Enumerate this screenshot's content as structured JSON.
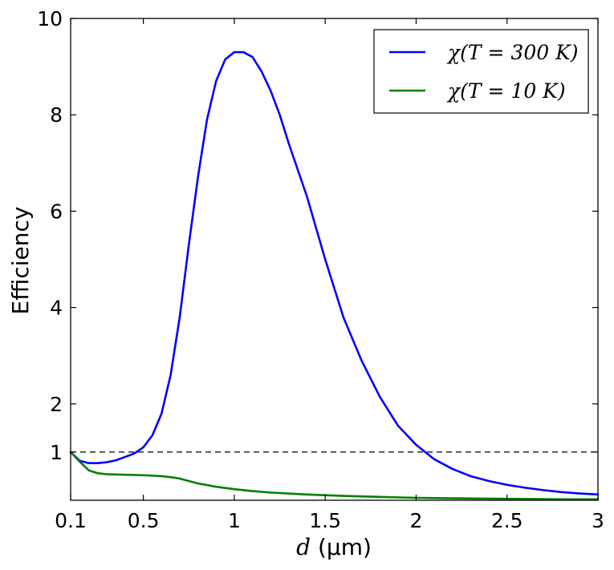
{
  "chart_data": {
    "type": "line",
    "title": "",
    "xlabel": "d (μm)",
    "xlabel_var": "d",
    "xlabel_unit": "(μm)",
    "ylabel": "Efficiency",
    "xlim": [
      0.1,
      3.0
    ],
    "ylim": [
      0,
      10
    ],
    "x_ticks": [
      0.1,
      0.5,
      1.0,
      1.5,
      2.0,
      2.5,
      3.0
    ],
    "x_tick_labels": [
      "0.1",
      "0.5",
      "1",
      "1.5",
      "2",
      "2.5",
      "3"
    ],
    "y_ticks": [
      1,
      2,
      4,
      6,
      8,
      10
    ],
    "y_tick_labels": [
      "1",
      "2",
      "4",
      "6",
      "8",
      "10"
    ],
    "grid": false,
    "legend_position": "top-right",
    "reference_line": {
      "y": 1,
      "style": "dashed",
      "color": "#000000"
    },
    "series": [
      {
        "name": "χ(T = 300 K)",
        "color": "#0000ff",
        "x": [
          0.1,
          0.15,
          0.2,
          0.25,
          0.3,
          0.35,
          0.4,
          0.45,
          0.5,
          0.55,
          0.6,
          0.65,
          0.7,
          0.75,
          0.8,
          0.85,
          0.9,
          0.95,
          1.0,
          1.05,
          1.1,
          1.15,
          1.2,
          1.25,
          1.3,
          1.4,
          1.5,
          1.6,
          1.7,
          1.8,
          1.9,
          2.0,
          2.1,
          2.2,
          2.3,
          2.4,
          2.5,
          2.6,
          2.7,
          2.8,
          2.9,
          3.0
        ],
        "values": [
          1.0,
          0.82,
          0.77,
          0.77,
          0.79,
          0.83,
          0.9,
          0.97,
          1.1,
          1.35,
          1.8,
          2.6,
          3.8,
          5.3,
          6.7,
          7.9,
          8.7,
          9.15,
          9.3,
          9.3,
          9.2,
          8.9,
          8.5,
          8.0,
          7.4,
          6.3,
          5.0,
          3.8,
          2.9,
          2.15,
          1.55,
          1.15,
          0.85,
          0.65,
          0.5,
          0.4,
          0.32,
          0.26,
          0.21,
          0.17,
          0.14,
          0.12
        ]
      },
      {
        "name": "χ(T = 10 K)",
        "color": "#008000",
        "x": [
          0.1,
          0.15,
          0.2,
          0.25,
          0.3,
          0.4,
          0.5,
          0.6,
          0.65,
          0.7,
          0.75,
          0.8,
          0.9,
          1.0,
          1.1,
          1.2,
          1.4,
          1.6,
          1.8,
          2.0,
          2.2,
          2.5,
          2.8,
          3.0
        ],
        "values": [
          1.0,
          0.8,
          0.62,
          0.56,
          0.54,
          0.53,
          0.52,
          0.5,
          0.48,
          0.45,
          0.4,
          0.35,
          0.28,
          0.23,
          0.19,
          0.16,
          0.12,
          0.09,
          0.07,
          0.05,
          0.04,
          0.03,
          0.02,
          0.02
        ]
      }
    ]
  }
}
